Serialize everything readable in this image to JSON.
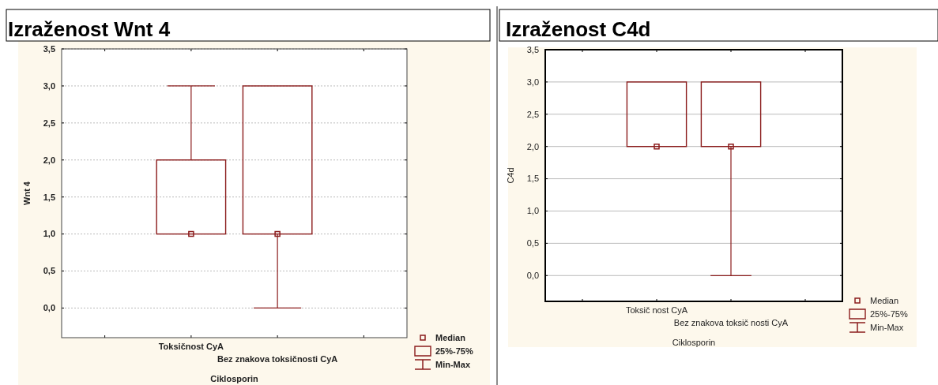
{
  "chart_data": [
    {
      "type": "box",
      "title": "Izraženost Wnt 4",
      "xlabel": "Ciklosporin",
      "ylabel": "Wnt 4",
      "categories": [
        "Toksičnost CyA",
        "Bez znakova toksičnosti CyA"
      ],
      "color": "#8b1c1c",
      "boxes": [
        {
          "low": 1,
          "q1": 1,
          "median": 1,
          "q3": 2,
          "high": 3
        },
        {
          "low": 0,
          "q1": 1,
          "median": 1,
          "q3": 3,
          "high": 3
        }
      ],
      "ylim": [
        -0.4,
        3.5
      ],
      "yticks": [
        {
          "value": 0,
          "label": "0,0"
        },
        {
          "value": 0.5,
          "label": "0,5"
        },
        {
          "value": 1,
          "label": "1,0"
        },
        {
          "value": 1.5,
          "label": "1,5"
        },
        {
          "value": 2,
          "label": "2,0"
        },
        {
          "value": 2.5,
          "label": "2,5"
        },
        {
          "value": 3,
          "label": "3,0"
        },
        {
          "value": 3.5,
          "label": "3,5"
        }
      ],
      "grid": "y",
      "annotations": [
        "Median",
        "25%-75%",
        "Min-Max"
      ]
    },
    {
      "type": "box",
      "title": "Izraženost C4d",
      "xlabel": "Ciklosporin",
      "ylabel": "C4d",
      "categories": [
        "Toksič nost CyA",
        "Bez znakova toksič nosti CyA"
      ],
      "color": "#8b1c1c",
      "boxes": [
        {
          "low": 2,
          "q1": 2,
          "median": 2,
          "q3": 3,
          "high": 3
        },
        {
          "low": 0,
          "q1": 2,
          "median": 2,
          "q3": 3,
          "high": 3
        }
      ],
      "ylim": [
        -0.4,
        3.5
      ],
      "yticks": [
        {
          "value": 0,
          "label": "0,0"
        },
        {
          "value": 0.5,
          "label": "0,5"
        },
        {
          "value": 1,
          "label": "1,0"
        },
        {
          "value": 1.5,
          "label": "1,5"
        },
        {
          "value": 2,
          "label": "2,0"
        },
        {
          "value": 2.5,
          "label": "2,5"
        },
        {
          "value": 3,
          "label": "3,0"
        },
        {
          "value": 3.5,
          "label": "3,5"
        }
      ],
      "grid": "y",
      "annotations": [
        "Median",
        "25%-75%",
        "Min-Max"
      ]
    }
  ]
}
